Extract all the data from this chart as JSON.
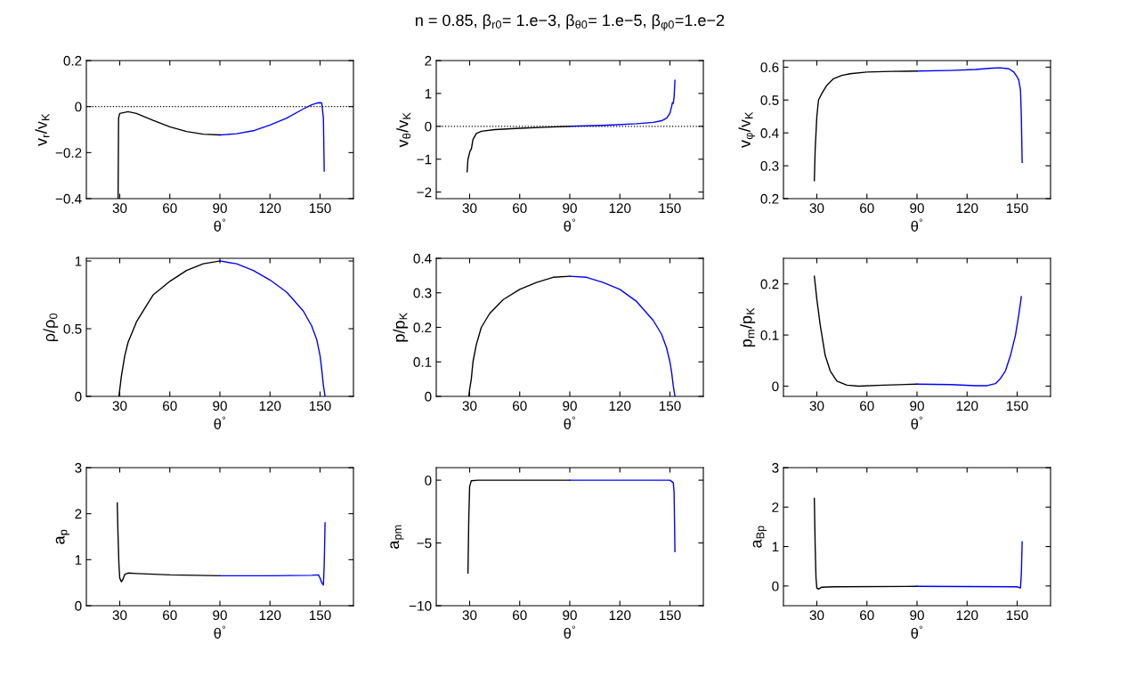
{
  "chart_data": [
    {
      "type": "line",
      "xlabel": "θ$^{°}$",
      "ylabel": "v$_{r}$/v$_{K}$",
      "xlim": [
        10,
        170
      ],
      "xticks": [
        30,
        60,
        90,
        120,
        150
      ],
      "ylim": [
        -0.4,
        0.2
      ],
      "yticks": [
        {
          "value": -0.4,
          "label": "−0.4"
        },
        {
          "value": -0.2,
          "label": "−0.2"
        },
        0,
        0.2
      ],
      "ref_lines": [
        {
          "axis": "y",
          "value": 0,
          "line_style": "dotted",
          "color": "#000000"
        }
      ],
      "series": [
        {
          "color": "#000000",
          "x": [
            29,
            29.3,
            30,
            35,
            40,
            50,
            60,
            70,
            80,
            90
          ],
          "values": [
            -0.4,
            -0.05,
            -0.03,
            -0.022,
            -0.03,
            -0.06,
            -0.088,
            -0.108,
            -0.12,
            -0.123
          ]
        },
        {
          "color": "#0000ff",
          "x": [
            90,
            100,
            110,
            120,
            130,
            140,
            145,
            148,
            150,
            151,
            152,
            152.5
          ],
          "values": [
            -0.123,
            -0.118,
            -0.105,
            -0.08,
            -0.05,
            -0.01,
            0.008,
            0.015,
            0.017,
            0.015,
            -0.05,
            -0.28
          ]
        }
      ]
    },
    {
      "type": "line",
      "title": "n = 0.85, β$_{r0}$= 1.e−3, β$_{θ0}$= 1.e−5, β$_{φ0}$=1.e−2",
      "xlabel": "θ$^{°}$",
      "ylabel": "v$_{θ}$/v$_{K}$",
      "xlim": [
        10,
        170
      ],
      "xticks": [
        30,
        60,
        90,
        120,
        150
      ],
      "ylim": [
        -2.2,
        2
      ],
      "yticks": [
        {
          "value": -2,
          "label": "−2"
        },
        {
          "value": -1,
          "label": "−1"
        },
        0,
        1,
        2
      ],
      "ref_lines": [
        {
          "axis": "y",
          "value": 0,
          "line_style": "dotted",
          "color": "#000000"
        }
      ],
      "series": [
        {
          "color": "#000000",
          "x": [
            28.5,
            29,
            30,
            30.5,
            31,
            32,
            34,
            37,
            45,
            60,
            75,
            90
          ],
          "values": [
            -1.38,
            -1.0,
            -0.8,
            -0.72,
            -0.7,
            -0.4,
            -0.22,
            -0.15,
            -0.1,
            -0.06,
            -0.03,
            0
          ]
        },
        {
          "color": "#0000ff",
          "x": [
            90,
            110,
            130,
            140,
            145,
            148,
            150,
            151,
            151.5,
            152,
            152.5,
            153
          ],
          "values": [
            0,
            0.03,
            0.08,
            0.12,
            0.17,
            0.25,
            0.4,
            0.6,
            0.72,
            0.7,
            0.9,
            1.4
          ]
        }
      ]
    },
    {
      "type": "line",
      "xlabel": "θ$^{°}$",
      "ylabel": "v$_{φ}$/v$_{K}$",
      "xlim": [
        10,
        170
      ],
      "xticks": [
        30,
        60,
        90,
        120,
        150
      ],
      "ylim": [
        0.2,
        0.62
      ],
      "yticks": [
        0.2,
        0.3,
        0.4,
        0.5,
        0.6
      ],
      "series": [
        {
          "color": "#000000",
          "x": [
            28.5,
            29,
            30,
            31,
            33,
            36,
            40,
            45,
            50,
            60,
            75,
            90
          ],
          "values": [
            0.255,
            0.35,
            0.45,
            0.5,
            0.52,
            0.545,
            0.565,
            0.575,
            0.58,
            0.585,
            0.587,
            0.588
          ]
        },
        {
          "color": "#0000ff",
          "x": [
            90,
            110,
            125,
            135,
            140,
            145,
            148,
            150,
            151,
            152,
            152.5,
            153
          ],
          "values": [
            0.588,
            0.59,
            0.593,
            0.597,
            0.598,
            0.595,
            0.585,
            0.57,
            0.56,
            0.53,
            0.45,
            0.31
          ]
        }
      ]
    },
    {
      "type": "line",
      "xlabel": "θ$^{°}$",
      "ylabel": "ρ/ρ$_{0}$",
      "xlim": [
        10,
        170
      ],
      "xticks": [
        30,
        60,
        90,
        120,
        150
      ],
      "ylim": [
        0,
        1.02
      ],
      "yticks": [
        0,
        0.5,
        1
      ],
      "series": [
        {
          "color": "#000000",
          "x": [
            29.5,
            30,
            31,
            33,
            35,
            40,
            45,
            50,
            55,
            60,
            70,
            80,
            90
          ],
          "values": [
            0,
            0.05,
            0.15,
            0.3,
            0.4,
            0.55,
            0.65,
            0.75,
            0.8,
            0.85,
            0.93,
            0.98,
            1.0
          ]
        },
        {
          "color": "#0000ff",
          "x": [
            90,
            100,
            110,
            120,
            130,
            140,
            145,
            148,
            150,
            151,
            152,
            153
          ],
          "values": [
            1.0,
            0.98,
            0.93,
            0.86,
            0.77,
            0.63,
            0.52,
            0.42,
            0.3,
            0.2,
            0.08,
            0
          ]
        }
      ]
    },
    {
      "type": "line",
      "xlabel": "θ$^{°}$",
      "ylabel": "p/p$_{K}$",
      "xlim": [
        10,
        170
      ],
      "xticks": [
        30,
        60,
        90,
        120,
        150
      ],
      "ylim": [
        0,
        0.4
      ],
      "yticks": [
        0,
        0.1,
        0.2,
        0.3,
        0.4
      ],
      "series": [
        {
          "color": "#000000",
          "x": [
            29.5,
            30,
            31,
            32,
            34,
            37,
            42,
            50,
            60,
            70,
            80,
            90
          ],
          "values": [
            0,
            0.02,
            0.05,
            0.1,
            0.15,
            0.2,
            0.24,
            0.28,
            0.31,
            0.33,
            0.345,
            0.348
          ]
        },
        {
          "color": "#0000ff",
          "x": [
            90,
            100,
            110,
            120,
            130,
            140,
            145,
            148,
            150,
            151,
            152,
            153
          ],
          "values": [
            0.348,
            0.345,
            0.33,
            0.31,
            0.275,
            0.22,
            0.18,
            0.14,
            0.1,
            0.07,
            0.03,
            0
          ]
        }
      ]
    },
    {
      "type": "line",
      "xlabel": "θ$^{°}$",
      "ylabel": "p$_{m}$/p$_{K}$",
      "xlim": [
        10,
        170
      ],
      "xticks": [
        30,
        60,
        90,
        120,
        150
      ],
      "ylim": [
        -0.02,
        0.25
      ],
      "yticks": [
        0,
        0.1,
        0.2
      ],
      "series": [
        {
          "color": "#000000",
          "x": [
            28.5,
            30,
            32,
            35,
            38,
            42,
            48,
            55,
            70,
            90
          ],
          "values": [
            0.215,
            0.17,
            0.12,
            0.06,
            0.03,
            0.01,
            0.002,
            0.0,
            0.002,
            0.004
          ]
        },
        {
          "color": "#0000ff",
          "x": [
            90,
            110,
            125,
            132,
            137,
            140,
            143,
            146,
            149,
            151,
            152.5
          ],
          "values": [
            0.004,
            0.003,
            0.001,
            0.001,
            0.005,
            0.015,
            0.03,
            0.06,
            0.1,
            0.14,
            0.175
          ]
        }
      ]
    },
    {
      "type": "line",
      "xlabel": "θ$^{°}$",
      "ylabel": "a$_{p}$",
      "xlim": [
        10,
        170
      ],
      "xticks": [
        30,
        60,
        90,
        120,
        150
      ],
      "ylim": [
        0,
        3
      ],
      "yticks": [
        0,
        1,
        2,
        3
      ],
      "series": [
        {
          "color": "#000000",
          "x": [
            28.5,
            29,
            29.5,
            30,
            31,
            32,
            33,
            35,
            40,
            60,
            90
          ],
          "values": [
            2.23,
            1.5,
            0.9,
            0.6,
            0.52,
            0.58,
            0.68,
            0.71,
            0.7,
            0.67,
            0.65
          ]
        },
        {
          "color": "#0000ff",
          "x": [
            90,
            120,
            145,
            149,
            150,
            151,
            152,
            152.5,
            153
          ],
          "values": [
            0.65,
            0.65,
            0.66,
            0.67,
            0.6,
            0.5,
            0.45,
            0.9,
            1.8
          ]
        }
      ]
    },
    {
      "type": "line",
      "xlabel": "θ$^{°}$",
      "ylabel": "a$_{pm}$",
      "xlim": [
        10,
        170
      ],
      "xticks": [
        30,
        60,
        90,
        120,
        150
      ],
      "ylim": [
        -10,
        1
      ],
      "yticks": [
        {
          "value": -10,
          "label": "−10"
        },
        {
          "value": -5,
          "label": "−5"
        },
        0
      ],
      "series": [
        {
          "color": "#000000",
          "x": [
            29,
            29.5,
            30,
            31,
            35,
            90
          ],
          "values": [
            -7.4,
            -3,
            -0.5,
            -0.05,
            0,
            0
          ]
        },
        {
          "color": "#0000ff",
          "x": [
            90,
            150,
            152,
            152.5,
            153
          ],
          "values": [
            0,
            0,
            -0.2,
            -1,
            -5.7
          ]
        }
      ]
    },
    {
      "type": "line",
      "xlabel": "θ$^{°}$",
      "ylabel": "a$_{Bp}$",
      "xlim": [
        10,
        170
      ],
      "xticks": [
        30,
        60,
        90,
        120,
        150
      ],
      "ylim": [
        -0.5,
        3
      ],
      "yticks": [
        0,
        1,
        2,
        3
      ],
      "series": [
        {
          "color": "#000000",
          "x": [
            28.5,
            29,
            29.5,
            30,
            31,
            33,
            40,
            90
          ],
          "values": [
            2.22,
            1.0,
            0.2,
            -0.05,
            -0.08,
            -0.03,
            -0.02,
            -0.01
          ]
        },
        {
          "color": "#0000ff",
          "x": [
            90,
            150,
            152,
            152.5,
            153
          ],
          "values": [
            -0.01,
            -0.02,
            -0.05,
            0.3,
            1.12
          ]
        }
      ]
    }
  ]
}
